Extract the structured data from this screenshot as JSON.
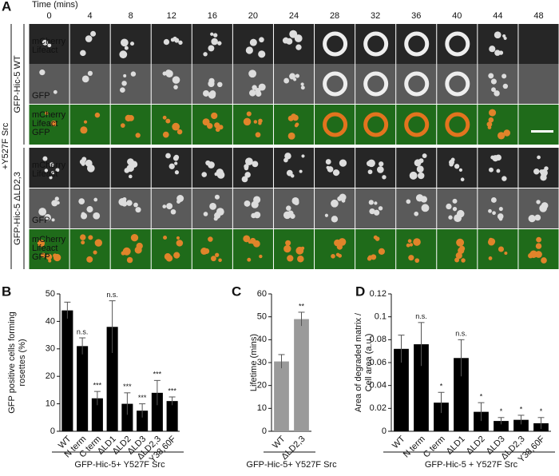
{
  "panel_a": {
    "label": "A",
    "time_title": "Time (mins)",
    "times": [
      "0",
      "4",
      "8",
      "12",
      "16",
      "20",
      "24",
      "28",
      "32",
      "36",
      "40",
      "44",
      "48"
    ],
    "condition": "+Y527F Src",
    "groups": [
      "GFP-Hic-5 WT",
      "GFP-Hic-5 ΔLD2,3"
    ],
    "row_labels": {
      "lifeact": [
        "mCherry",
        "Lifeact"
      ],
      "gfp": "GFP",
      "merge": [
        "mCherry",
        "Lifeact",
        "GFP"
      ]
    }
  },
  "chart_data": [
    {
      "type": "bar",
      "panel": "B",
      "ylabel": [
        "GFP positive cells forming",
        "rosettes (%)"
      ],
      "categories": [
        "WT",
        "N term",
        "C term",
        "ΔLD1",
        "ΔLD2",
        "ΔLD3",
        "ΔLD2,3",
        "Y38,60F"
      ],
      "values": [
        44,
        31,
        12,
        38,
        10,
        7.5,
        14,
        11
      ],
      "errors": [
        3,
        3,
        2.5,
        9.5,
        4,
        2.5,
        4.5,
        1.5
      ],
      "annotations": [
        null,
        "n.s.",
        "***",
        "n.s.",
        "***",
        "***",
        "***",
        "***"
      ],
      "color": "#000000",
      "ylim": [
        0,
        50
      ],
      "yticks": [
        0,
        10,
        20,
        30,
        40,
        50
      ],
      "xlabel": "GFP-Hic-5+ Y527F Src"
    },
    {
      "type": "bar",
      "panel": "C",
      "ylabel": [
        "Lifetime (mins)"
      ],
      "categories": [
        "WT",
        "ΔLD2,3"
      ],
      "values": [
        30.5,
        49
      ],
      "errors": [
        3,
        3
      ],
      "annotations": [
        null,
        "**"
      ],
      "color": "#9a9a9a",
      "ylim": [
        0,
        60
      ],
      "yticks": [
        0,
        10,
        20,
        30,
        40,
        50,
        60
      ],
      "xlabel": "GFP-Hic-5+ Y527F Src"
    },
    {
      "type": "bar",
      "panel": "D",
      "ylabel": [
        "Area of degraded matrix /",
        "Cell area (a.u.)"
      ],
      "categories": [
        "WT",
        "N term",
        "C term",
        "ΔLD1",
        "ΔLD2",
        "ΔLD3",
        "ΔLD2,3",
        "Y38,60F"
      ],
      "values": [
        0.072,
        0.076,
        0.025,
        0.064,
        0.017,
        0.009,
        0.01,
        0.007
      ],
      "errors": [
        0.012,
        0.019,
        0.009,
        0.016,
        0.008,
        0.003,
        0.004,
        0.005
      ],
      "annotations": [
        null,
        "n.s.",
        "*",
        "n.s.",
        "*",
        "*",
        "*",
        "*"
      ],
      "color": "#000000",
      "ylim": [
        0,
        0.12
      ],
      "yticks": [
        0,
        0.02,
        0.04,
        0.06,
        0.08,
        0.1,
        0.12
      ],
      "xlabel": "GFP-Hic-5 + Y527F Src"
    }
  ]
}
